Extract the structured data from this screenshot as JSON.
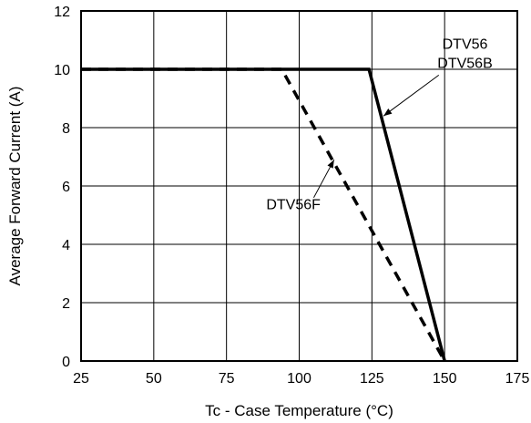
{
  "chart_data": {
    "type": "line",
    "xlabel": "Tc - Case Temperature (°C)",
    "ylabel": "Average Forward Current (A)",
    "xlim": [
      25,
      175
    ],
    "ylim": [
      0,
      12
    ],
    "x_ticks": [
      25,
      50,
      75,
      100,
      125,
      150,
      175
    ],
    "y_ticks": [
      0,
      2,
      4,
      6,
      8,
      10,
      12
    ],
    "grid": true,
    "series": [
      {
        "name": "DTV56 DTV56B",
        "style": "solid",
        "x": [
          25,
          124,
          150
        ],
        "y": [
          10,
          10,
          0
        ]
      },
      {
        "name": "DTV56F",
        "style": "dashed",
        "x": [
          25,
          94,
          150
        ],
        "y": [
          10,
          10,
          0
        ]
      }
    ],
    "annotations": [
      {
        "lines": [
          "DTV56",
          "DTV56B"
        ],
        "series": 0,
        "text_at": [
          157,
          10.7
        ],
        "arrow_to": [
          129,
          8.4
        ],
        "leader_from": [
          148,
          9.8
        ]
      },
      {
        "lines": [
          "DTV56F"
        ],
        "series": 1,
        "text_at": [
          98,
          5.2
        ],
        "arrow_to": [
          112,
          6.9
        ],
        "leader_from": [
          105,
          5.6
        ]
      }
    ]
  }
}
